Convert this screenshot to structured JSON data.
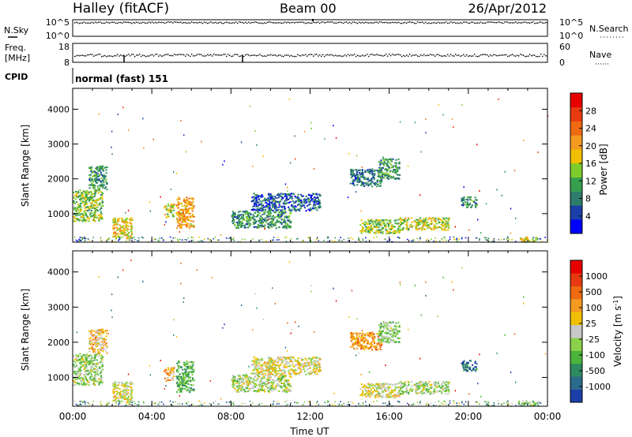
{
  "header": {
    "station": "Halley (fitACF)",
    "beam": "Beam 00",
    "date": "26/Apr/2012"
  },
  "parameter_panels": {
    "nsky": {
      "label": "N.Sky",
      "ticks": [
        "10^5",
        "10^0"
      ]
    },
    "nsearch": {
      "label": "N.Search",
      "ticks": [
        "10^5",
        "10^0"
      ]
    },
    "freq": {
      "label_line1": "Freq.",
      "label_line2": "[MHz]",
      "ticks": [
        "18",
        "8"
      ]
    },
    "nave": {
      "label": "Nave",
      "ticks": [
        "60",
        "0"
      ]
    },
    "cpid": {
      "label": "CPID",
      "value": "normal (fast) 151"
    }
  },
  "axes": {
    "x_ticks": [
      "00:00",
      "04:00",
      "08:00",
      "12:00",
      "16:00",
      "20:00",
      "00:00"
    ],
    "x_label": "Time UT",
    "y_ticks": [
      "1000",
      "2000",
      "3000",
      "4000"
    ],
    "y_label": "Slant Range [km]"
  },
  "colorbars": {
    "power": {
      "label": "Power [dB]",
      "ticks": [
        "4",
        "8",
        "12",
        "16",
        "20",
        "24",
        "28"
      ],
      "colors": [
        "#0000ff",
        "#1a3fa8",
        "#2e7d6a",
        "#37a04f",
        "#7ccd2a",
        "#f0c000",
        "#f59a20",
        "#ef6a10",
        "#e83a10",
        "#e80000"
      ]
    },
    "velocity": {
      "label": "Velocity [m s^-1]",
      "ticks": [
        "1000",
        "500",
        "100",
        "25",
        "-25",
        "-100",
        "-500",
        "-1000"
      ],
      "colors": [
        "#1a3fa8",
        "#2a6a8a",
        "#2e8a60",
        "#4cb43a",
        "#8ad24a",
        "#c8c8c8",
        "#f0c000",
        "#f59a20",
        "#ef6a10",
        "#e83a10",
        "#e80000"
      ]
    }
  },
  "chart_data": {
    "type": "heatmap",
    "title": "Halley (fitACF) Beam 00 26/Apr/2012",
    "xlabel": "Time UT",
    "ylabel": "Slant Range [km]",
    "xlim": [
      "00:00",
      "24:00"
    ],
    "ylim": [
      180,
      4600
    ],
    "panels": [
      {
        "name": "Power",
        "colorbar_label": "Power [dB]",
        "colorbar_range": [
          0,
          32
        ],
        "regions": [
          {
            "t": [
              0.0,
              1.5
            ],
            "range_km": [
              800,
              1700
            ],
            "value": 14
          },
          {
            "t": [
              0.8,
              1.7
            ],
            "range_km": [
              1700,
              2400
            ],
            "value": 10
          },
          {
            "t": [
              2.0,
              3.0
            ],
            "range_km": [
              300,
              900
            ],
            "value": 18
          },
          {
            "t": [
              4.6,
              5.1
            ],
            "range_km": [
              900,
              1300
            ],
            "value": 16
          },
          {
            "t": [
              5.2,
              6.1
            ],
            "range_km": [
              600,
              1500
            ],
            "value": 20
          },
          {
            "t": [
              8.0,
              11.0
            ],
            "range_km": [
              600,
              1100
            ],
            "value": 10
          },
          {
            "t": [
              9.0,
              12.5
            ],
            "range_km": [
              1100,
              1600
            ],
            "value": 6
          },
          {
            "t": [
              14.0,
              15.6
            ],
            "range_km": [
              1800,
              2300
            ],
            "value": 8
          },
          {
            "t": [
              15.4,
              16.5
            ],
            "range_km": [
              2000,
              2600
            ],
            "value": 10
          },
          {
            "t": [
              14.5,
              16.5
            ],
            "range_km": [
              450,
              850
            ],
            "value": 14
          },
          {
            "t": [
              16.5,
              19.0
            ],
            "range_km": [
              550,
              900
            ],
            "value": 16
          },
          {
            "t": [
              19.6,
              20.4
            ],
            "range_km": [
              1200,
              1500
            ],
            "value": 10
          },
          {
            "t": [
              22.5,
              23.5
            ],
            "range_km": [
              200,
              350
            ],
            "value": 18
          }
        ]
      },
      {
        "name": "Velocity",
        "colorbar_label": "Velocity [m s^-1]",
        "colorbar_range": [
          -1000,
          1000
        ],
        "regions": [
          {
            "t": [
              0.0,
              1.5
            ],
            "range_km": [
              800,
              1700
            ],
            "value": -150
          },
          {
            "t": [
              0.8,
              1.7
            ],
            "range_km": [
              1700,
              2400
            ],
            "value": 200
          },
          {
            "t": [
              2.0,
              3.0
            ],
            "range_km": [
              300,
              900
            ],
            "value": 30
          },
          {
            "t": [
              4.6,
              5.1
            ],
            "range_km": [
              900,
              1300
            ],
            "value": 300
          },
          {
            "t": [
              5.2,
              6.1
            ],
            "range_km": [
              600,
              1500
            ],
            "value": -400
          },
          {
            "t": [
              8.0,
              11.0
            ],
            "range_km": [
              600,
              1100
            ],
            "value": -90
          },
          {
            "t": [
              9.0,
              12.5
            ],
            "range_km": [
              1100,
              1600
            ],
            "value": 60
          },
          {
            "t": [
              14.0,
              15.6
            ],
            "range_km": [
              1800,
              2300
            ],
            "value": 400
          },
          {
            "t": [
              15.4,
              16.5
            ],
            "range_km": [
              2000,
              2600
            ],
            "value": -200
          },
          {
            "t": [
              14.5,
              16.5
            ],
            "range_km": [
              450,
              850
            ],
            "value": 20
          },
          {
            "t": [
              16.5,
              19.0
            ],
            "range_km": [
              550,
              900
            ],
            "value": -120
          },
          {
            "t": [
              19.6,
              20.4
            ],
            "range_km": [
              1200,
              1500
            ],
            "value": -700
          },
          {
            "t": [
              22.5,
              23.5
            ],
            "range_km": [
              200,
              350
            ],
            "value": -300
          }
        ]
      }
    ]
  }
}
